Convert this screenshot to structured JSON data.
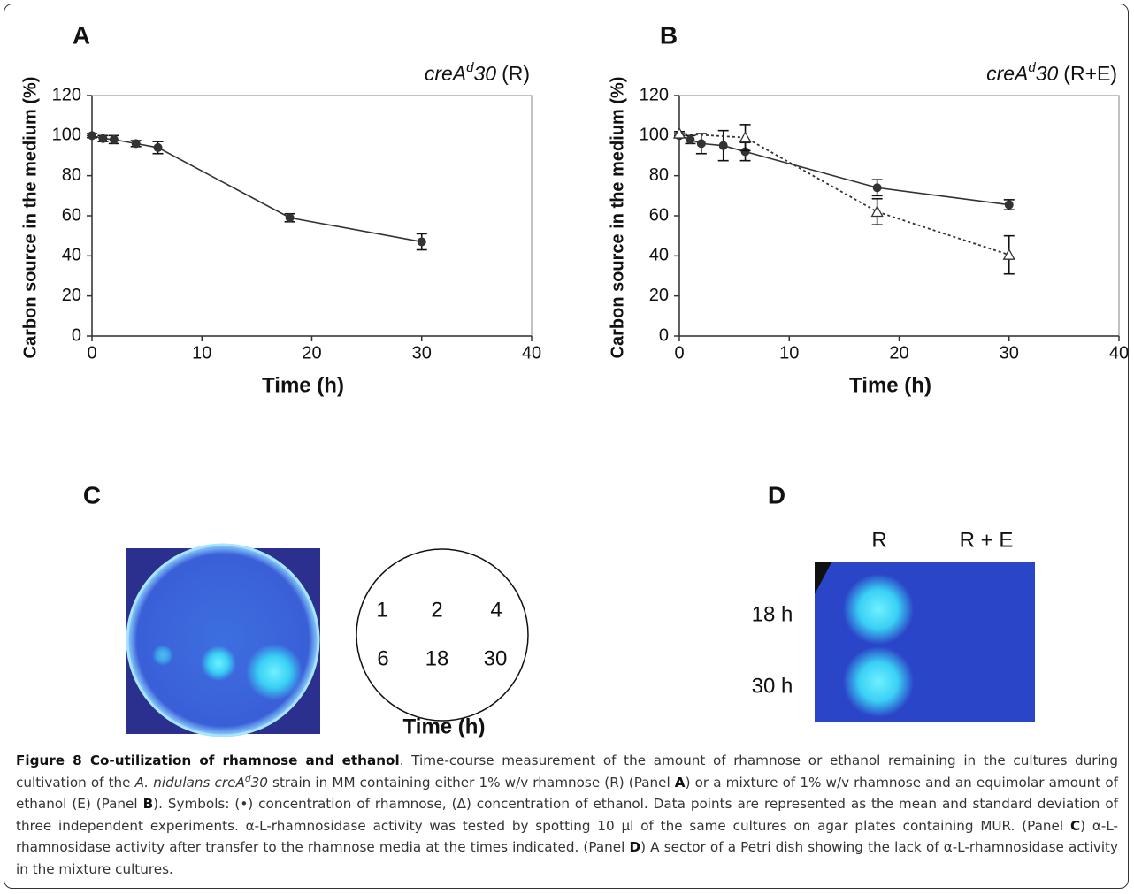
{
  "chart_data": [
    {
      "type": "line",
      "panel_label": "A",
      "title_parts": [
        {
          "text": "creA",
          "style": "italic"
        },
        {
          "text": "d",
          "style": "sup"
        },
        {
          "text": "30",
          "style": "italic"
        },
        {
          "text": "(R)",
          "style": "plain"
        }
      ],
      "x_label": "Time (h)",
      "y_label": "Carbon source in the medium (%)",
      "xlim": [
        0,
        40
      ],
      "xticks": [
        0,
        10,
        20,
        30,
        40
      ],
      "ylim": [
        0,
        120
      ],
      "yticks": [
        0,
        20,
        40,
        60,
        80,
        100,
        120
      ],
      "series": [
        {
          "color": "#333333",
          "marker": "circle",
          "line_style": "solid",
          "x": [
            0,
            1,
            2,
            4,
            6,
            18,
            30
          ],
          "values": [
            100,
            98.5,
            98,
            96,
            94,
            59,
            47
          ],
          "errors": [
            1,
            1.5,
            2,
            1.5,
            3,
            2,
            4
          ]
        }
      ]
    },
    {
      "type": "line",
      "panel_label": "B",
      "title_parts": [
        {
          "text": "creA",
          "style": "italic"
        },
        {
          "text": "d",
          "style": "sup"
        },
        {
          "text": "30",
          "style": "italic"
        },
        {
          "text": "(R+E)",
          "style": "plain"
        }
      ],
      "x_label": "Time (h)",
      "y_label": "Carbon source in the medium (%)",
      "xlim": [
        0,
        40
      ],
      "xticks": [
        0,
        10,
        20,
        30,
        40
      ],
      "ylim": [
        0,
        120
      ],
      "yticks": [
        0,
        20,
        40,
        60,
        80,
        100,
        120
      ],
      "series": [
        {
          "color": "#333333",
          "marker": "circle",
          "line_style": "solid",
          "x": [
            0,
            1,
            2,
            4,
            6,
            18,
            30
          ],
          "values": [
            100,
            98,
            96,
            95,
            92,
            74,
            65.5
          ],
          "errors": [
            1,
            2,
            5,
            7.5,
            4.5,
            4,
            2.5
          ]
        },
        {
          "color": "#333333",
          "marker": "triangle",
          "line_style": "dotted",
          "x": [
            0,
            6,
            18,
            30
          ],
          "values": [
            101,
            99,
            62,
            40.5
          ],
          "errors": [
            1,
            6.5,
            6.5,
            9.5
          ]
        }
      ]
    }
  ],
  "panel_c": {
    "label": "C",
    "numbers": [
      "1",
      "2",
      "4",
      "6",
      "18",
      "30"
    ],
    "x_label": "Time (h)"
  },
  "panel_d": {
    "label": "D",
    "columns": [
      "R",
      "R + E"
    ],
    "rows": [
      "18 h",
      "30 h"
    ]
  },
  "caption": {
    "runs": [
      {
        "text": "Figure 8 Co-utilization of rhamnose and ethanol",
        "style": "bold"
      },
      {
        "text": ". Time-course measurement of the amount of rhamnose or ethanol remaining in the cultures during cultivation of the ",
        "style": "plain"
      },
      {
        "text": "A. nidulans creA",
        "style": "italic"
      },
      {
        "text": "d",
        "style": "sup"
      },
      {
        "text": "30",
        "style": "italic"
      },
      {
        "text": " strain in MM containing either 1% w/v rhamnose (R) (Panel ",
        "style": "plain"
      },
      {
        "text": "A",
        "style": "bold"
      },
      {
        "text": ") or a mixture of 1% w/v rhamnose and an equimolar amount of ethanol (E) (Panel ",
        "style": "plain"
      },
      {
        "text": "B",
        "style": "bold"
      },
      {
        "text": "). Symbols: (•) concentration of rhamnose, (Δ) concentration of ethanol. Data points are represented as the mean and standard deviation of three independent experiments. α-L-rhamnosidase activity was tested by spotting 10 µl of the same cultures on agar plates containing MUR. (Panel ",
        "style": "plain"
      },
      {
        "text": "C",
        "style": "bold"
      },
      {
        "text": ") α-L-rhamnosidase activity after transfer to the rhamnose media at the times indicated. (Panel ",
        "style": "plain"
      },
      {
        "text": "D",
        "style": "bold"
      },
      {
        "text": ") A sector of a Petri dish showing the lack of α-L-rhamnosidase activity in the mixture cultures.",
        "style": "plain"
      }
    ]
  }
}
